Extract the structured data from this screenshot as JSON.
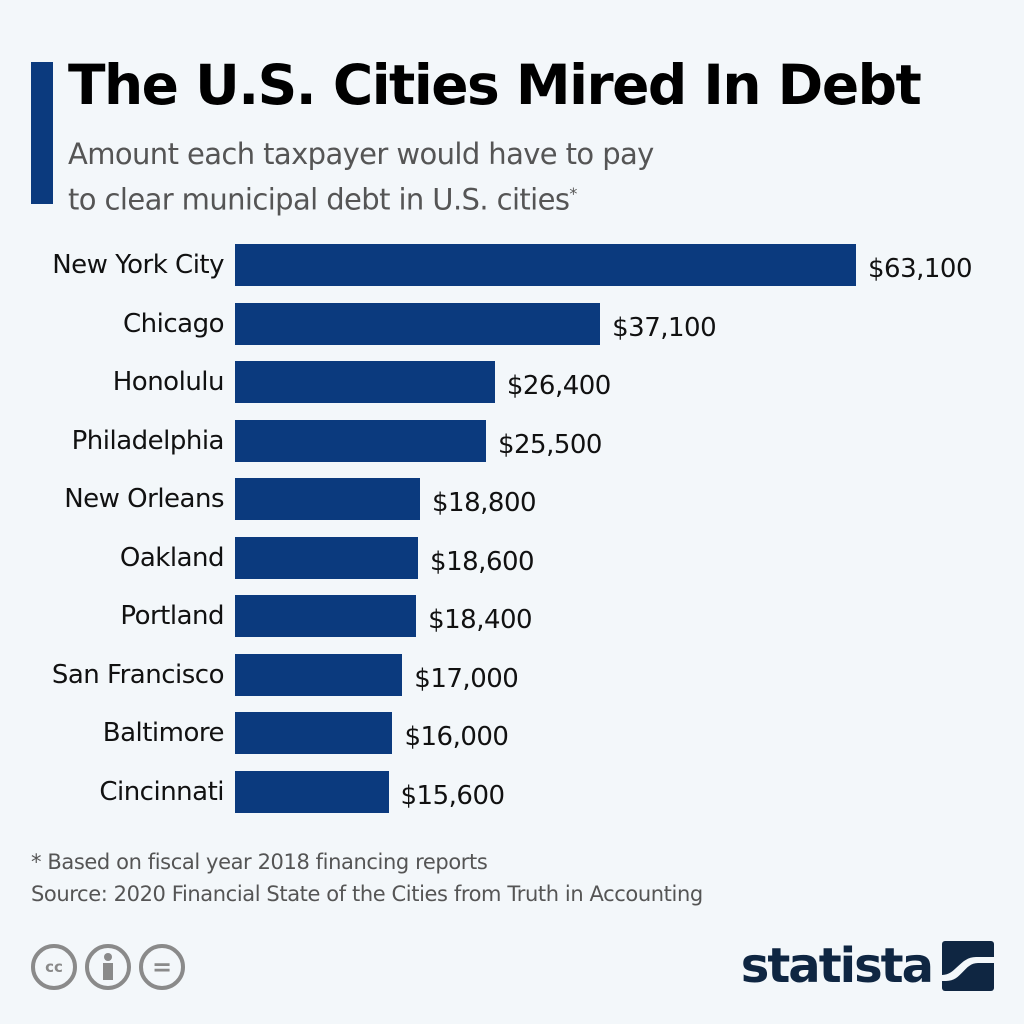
{
  "header": {
    "title": "The U.S. Cities Mired In Debt",
    "subtitle_line1": "Amount each taxpayer would have to pay",
    "subtitle_line2": "to clear municipal debt in U.S. cities",
    "subtitle_marker": "*"
  },
  "colors": {
    "bar": "#0b3a7e",
    "background": "#f3f7fa",
    "accent": "#0b3a7e",
    "logo": "#0f2642"
  },
  "chart_data": {
    "type": "bar",
    "orientation": "horizontal",
    "title": "The U.S. Cities Mired In Debt",
    "subtitle": "Amount each taxpayer would have to pay to clear municipal debt in U.S. cities*",
    "categories": [
      "New York City",
      "Chicago",
      "Honolulu",
      "Philadelphia",
      "New Orleans",
      "Oakland",
      "Portland",
      "San Francisco",
      "Baltimore",
      "Cincinnati"
    ],
    "values": [
      63100,
      37100,
      26400,
      25500,
      18800,
      18600,
      18400,
      17000,
      16000,
      15600
    ],
    "value_labels": [
      "$63,100",
      "$37,100",
      "$26,400",
      "$25,500",
      "$18,800",
      "$18,600",
      "$18,400",
      "$17,000",
      "$16,000",
      "$15,600"
    ],
    "xlabel": "",
    "ylabel": "",
    "unit": "USD per taxpayer",
    "grid": false,
    "legend": "none"
  },
  "footer": {
    "note": "* Based on fiscal year 2018 financing reports",
    "source": "Source: 2020 Financial State of the Cities from Truth in Accounting",
    "license_icons": [
      "cc",
      "by",
      "nd"
    ],
    "cc_label": "cc",
    "nd_label": "=",
    "brand": "statista"
  }
}
